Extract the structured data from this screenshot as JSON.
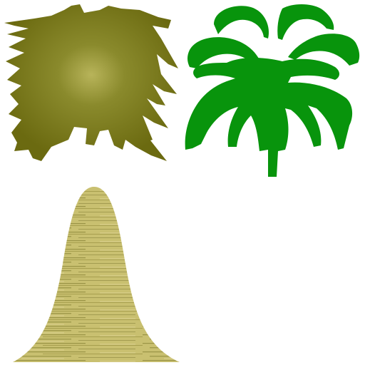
{
  "texture_sheet": {
    "background": "#ffffff",
    "sprites": [
      {
        "name": "spiky-palm-crown",
        "color_outer": "#6b6a10",
        "color_mid": "#8a8a2c",
        "color_core": "#b8b45a"
      },
      {
        "name": "green-palm-fronds",
        "color": "#08940c"
      },
      {
        "name": "bell-shaped-trunk",
        "color_base": "#c9c070",
        "color_streak": "#8f8a3c"
      }
    ]
  }
}
